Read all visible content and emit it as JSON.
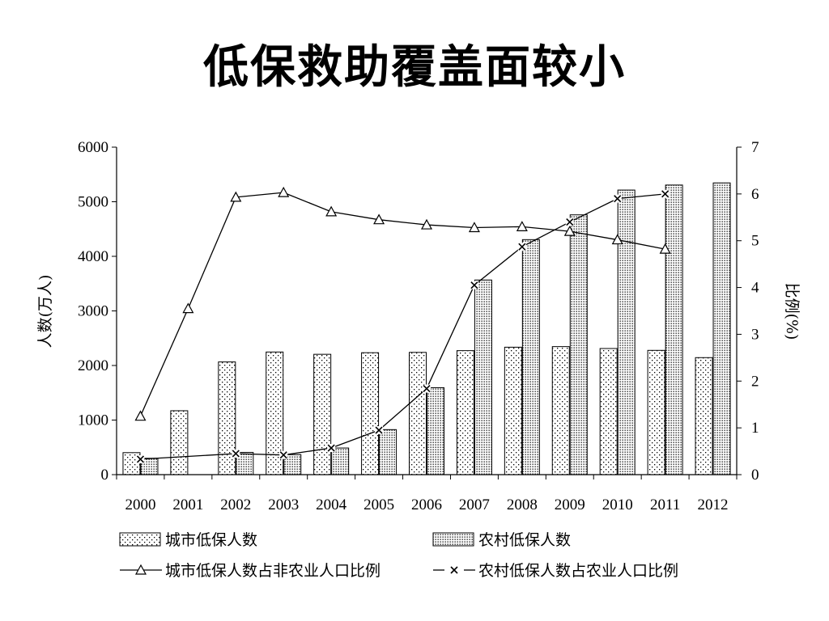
{
  "title": "低保救助覆盖面较小",
  "chart_data": {
    "type": "bar",
    "categories": [
      "2000",
      "2001",
      "2002",
      "2003",
      "2004",
      "2005",
      "2006",
      "2007",
      "2008",
      "2009",
      "2010",
      "2011",
      "2012"
    ],
    "ylabel": "人数(万人)",
    "y2label": "比例(%)",
    "ylim": [
      0,
      6000
    ],
    "y2lim": [
      0,
      7
    ],
    "yticks": [
      "0",
      "1000",
      "2000",
      "3000",
      "4000",
      "5000",
      "6000"
    ],
    "y2ticks": [
      "0",
      "1",
      "2",
      "3",
      "4",
      "5",
      "6",
      "7"
    ],
    "bar_series": [
      {
        "name": "城市低保人数",
        "values": [
          403,
          1171,
          2065,
          2247,
          2205,
          2234,
          2240,
          2272,
          2335,
          2346,
          2311,
          2277,
          2144
        ],
        "pattern": "sparse-dots"
      },
      {
        "name": "农村低保人数",
        "values": [
          300,
          null,
          408,
          367,
          488,
          825,
          1593,
          3566,
          4306,
          4760,
          5214,
          5306,
          5345
        ],
        "pattern": "dense-dots"
      }
    ],
    "line_series": [
      {
        "name": "城市低保人数占非农业人口比例",
        "marker": "triangle",
        "values": [
          1.25,
          3.55,
          5.93,
          6.03,
          5.62,
          5.45,
          5.34,
          5.28,
          5.3,
          5.2,
          5.02,
          4.82,
          null
        ]
      },
      {
        "name": "农村低保人数占农业人口比例",
        "marker": "x",
        "values": [
          0.33,
          null,
          0.45,
          0.42,
          0.57,
          0.95,
          1.84,
          4.05,
          4.87,
          5.4,
          5.9,
          6.0,
          null
        ]
      }
    ],
    "grid": false,
    "legend": "bottom"
  }
}
